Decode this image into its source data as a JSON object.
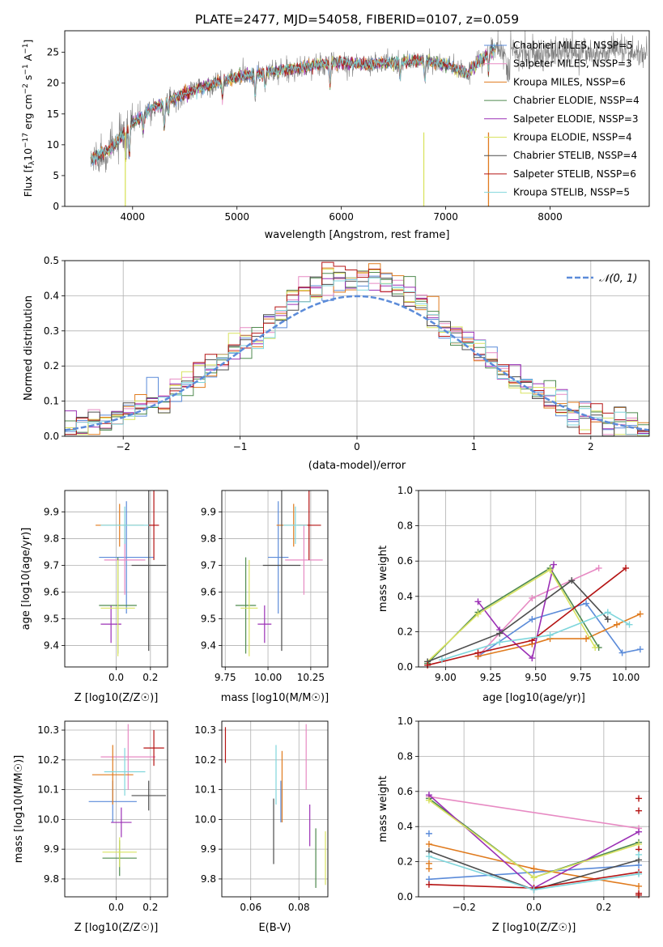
{
  "colors": {
    "chabrier_miles": "#5b8bd9",
    "salpeter_miles": "#e78ac3",
    "kroupa_miles": "#e07b1e",
    "chabrier_elodie": "#4f8a4f",
    "salpeter_elodie": "#9b30b5",
    "kroupa_elodie": "#d9e360",
    "chabrier_stelib": "#4d4d4d",
    "salpeter_stelib": "#b51414",
    "kroupa_stelib": "#7fd6dc",
    "gaussian": "#5b8bd9"
  },
  "chart_data": [
    {
      "id": "spectrum",
      "type": "line",
      "title": "PLATE=2477, MJD=54058, FIBERID=0107, z=0.059",
      "xlabel": "wavelength [Angstrom, rest frame]",
      "ylabel": "Flux [fλ10⁻¹⁷ erg cm⁻² s⁻¹ A⁻¹]",
      "xlim": [
        3350,
        8950
      ],
      "ylim": [
        0,
        28.5
      ],
      "xticks": [
        "4000",
        "5000",
        "6000",
        "7000",
        "8000"
      ],
      "yticks": [
        "0",
        "5",
        "10",
        "15",
        "20",
        "25"
      ],
      "legend_position": "right",
      "legend": [
        {
          "key": "chabrier_miles",
          "label": "Chabrier MILES, NSSP=5"
        },
        {
          "key": "salpeter_miles",
          "label": "Salpeter MILES, NSSP=3"
        },
        {
          "key": "kroupa_miles",
          "label": "Kroupa MILES, NSSP=6"
        },
        {
          "key": "chabrier_elodie",
          "label": "Chabrier ELODIE, NSSP=4"
        },
        {
          "key": "salpeter_elodie",
          "label": "Salpeter ELODIE, NSSP=3"
        },
        {
          "key": "kroupa_elodie",
          "label": "Kroupa ELODIE, NSSP=4"
        },
        {
          "key": "chabrier_stelib",
          "label": "Chabrier STELIB, NSSP=4"
        },
        {
          "key": "salpeter_stelib",
          "label": "Salpeter STELIB, NSSP=6"
        },
        {
          "key": "kroupa_stelib",
          "label": "Kroupa STELIB, NSSP=5"
        }
      ],
      "continuum": {
        "x": [
          3600,
          3800,
          4000,
          4200,
          4400,
          4600,
          4800,
          5000,
          5200,
          5400,
          5600,
          5800,
          6000,
          6200,
          6400,
          6600,
          6800,
          7000,
          7200,
          7400,
          7500
        ],
        "y": [
          7.5,
          9.5,
          13.5,
          16.0,
          17.5,
          19.0,
          20.0,
          21.0,
          21.5,
          22.0,
          22.5,
          23.0,
          23.5,
          23.0,
          23.2,
          23.5,
          23.6,
          23.0,
          21.5,
          24.8,
          26.0
        ],
        "observed_extends_to": 8930
      },
      "absorption_features": {
        "x": [
          3934,
          3969,
          4102,
          4304,
          4341,
          4861,
          5175,
          5270,
          5892,
          6563,
          6800,
          7410
        ],
        "depth": [
          5.0,
          4.5,
          2.5,
          4.0,
          2.0,
          2.5,
          3.5,
          2.0,
          3.5,
          2.5,
          3.0,
          3.0
        ]
      }
    },
    {
      "id": "residuals",
      "type": "histogram",
      "xlabel": "(data-model)/error",
      "ylabel": "Normed distribution",
      "xlim": [
        -2.5,
        2.5
      ],
      "ylim": [
        0,
        0.5
      ],
      "xticks": [
        "−2",
        "−1",
        "0",
        "1",
        "2"
      ],
      "yticks": [
        "0.0",
        "0.1",
        "0.2",
        "0.3",
        "0.4",
        "0.5"
      ],
      "grid": true,
      "legend_position": "upper right",
      "gaussian_label": "𝒩(0, 1)",
      "bin_width": 0.1,
      "gaussian": {
        "mean": 0,
        "sigma": 1
      }
    },
    {
      "id": "age_vs_z",
      "type": "errorbar",
      "xlabel": "Z [log10(Z/Z☉)]",
      "ylabel": "age  [log10(age/yr)]",
      "xlim": [
        -0.3,
        0.3
      ],
      "ylim": [
        9.32,
        9.98
      ],
      "xticks": [
        {
          "v": 0.0,
          "t": "0.0"
        },
        {
          "v": 0.2,
          "t": "0.2"
        }
      ],
      "yticks": [
        {
          "v": 9.4,
          "t": "9.4"
        },
        {
          "v": 9.5,
          "t": "9.5"
        },
        {
          "v": 9.6,
          "t": "9.6"
        },
        {
          "v": 9.7,
          "t": "9.7"
        },
        {
          "v": 9.8,
          "t": "9.8"
        },
        {
          "v": 9.9,
          "t": "9.9"
        }
      ],
      "grid": true,
      "points": [
        {
          "key": "chabrier_miles",
          "x": 0.06,
          "y": 9.73,
          "xerr": 0.16,
          "yerr": 0.21
        },
        {
          "key": "salpeter_miles",
          "x": 0.05,
          "y": 9.72,
          "xerr": 0.12,
          "yerr": 0.13
        },
        {
          "key": "kroupa_miles",
          "x": 0.02,
          "y": 9.85,
          "xerr": 0.14,
          "yerr": 0.08
        },
        {
          "key": "chabrier_elodie",
          "x": 0.01,
          "y": 9.55,
          "xerr": 0.11,
          "yerr": 0.18
        },
        {
          "key": "salpeter_elodie",
          "x": -0.03,
          "y": 9.48,
          "xerr": 0.06,
          "yerr": 0.07
        },
        {
          "key": "kroupa_elodie",
          "x": 0.01,
          "y": 9.54,
          "xerr": 0.1,
          "yerr": 0.18
        },
        {
          "key": "chabrier_stelib",
          "x": 0.19,
          "y": 9.7,
          "xerr": 0.1,
          "yerr": 0.32
        },
        {
          "key": "salpeter_stelib",
          "x": 0.22,
          "y": 9.85,
          "xerr": 0.03,
          "yerr": 0.13
        },
        {
          "key": "kroupa_stelib",
          "x": 0.05,
          "y": 9.85,
          "xerr": 0.14,
          "yerr": 0.07
        }
      ]
    },
    {
      "id": "age_vs_mass",
      "type": "errorbar",
      "xlabel": "mass [log10(M/M☉)]",
      "ylabel": "",
      "xlim": [
        9.73,
        10.35
      ],
      "ylim": [
        9.32,
        9.98
      ],
      "xticks": [
        {
          "v": 9.75,
          "t": "9.75"
        },
        {
          "v": 10.0,
          "t": "10.00"
        },
        {
          "v": 10.25,
          "t": "10.25"
        }
      ],
      "yticks": [
        {
          "v": 9.4,
          "t": "9.4"
        },
        {
          "v": 9.5,
          "t": "9.5"
        },
        {
          "v": 9.6,
          "t": "9.6"
        },
        {
          "v": 9.7,
          "t": "9.7"
        },
        {
          "v": 9.8,
          "t": "9.8"
        },
        {
          "v": 9.9,
          "t": "9.9"
        }
      ],
      "grid": true,
      "points": [
        {
          "key": "chabrier_miles",
          "x": 10.06,
          "y": 9.73,
          "xerr": 0.06,
          "yerr": 0.21
        },
        {
          "key": "salpeter_miles",
          "x": 10.21,
          "y": 9.72,
          "xerr": 0.11,
          "yerr": 0.13
        },
        {
          "key": "kroupa_miles",
          "x": 10.15,
          "y": 9.85,
          "xerr": 0.1,
          "yerr": 0.08
        },
        {
          "key": "chabrier_elodie",
          "x": 9.87,
          "y": 9.55,
          "xerr": 0.06,
          "yerr": 0.18
        },
        {
          "key": "salpeter_elodie",
          "x": 9.98,
          "y": 9.48,
          "xerr": 0.04,
          "yerr": 0.07
        },
        {
          "key": "kroupa_elodie",
          "x": 9.89,
          "y": 9.54,
          "xerr": 0.05,
          "yerr": 0.18
        },
        {
          "key": "chabrier_stelib",
          "x": 10.08,
          "y": 9.7,
          "xerr": 0.11,
          "yerr": 0.32
        },
        {
          "key": "salpeter_stelib",
          "x": 10.24,
          "y": 9.85,
          "xerr": 0.07,
          "yerr": 0.13
        },
        {
          "key": "kroupa_stelib",
          "x": 10.16,
          "y": 9.85,
          "xerr": 0.07,
          "yerr": 0.07
        }
      ]
    },
    {
      "id": "weight_vs_age",
      "type": "line",
      "xlabel": "age  [log10(age/yr)]",
      "ylabel": "mass weight",
      "xlim": [
        8.85,
        10.13
      ],
      "ylim": [
        0,
        1.0
      ],
      "xticks": [
        {
          "v": 9.0,
          "t": "9.00"
        },
        {
          "v": 9.25,
          "t": "9.25"
        },
        {
          "v": 9.5,
          "t": "9.50"
        },
        {
          "v": 9.75,
          "t": "9.75"
        },
        {
          "v": 10.0,
          "t": "10.00"
        }
      ],
      "yticks": [
        {
          "v": 0,
          "t": "0.0"
        },
        {
          "v": 0.2,
          "t": "0.2"
        },
        {
          "v": 0.4,
          "t": "0.4"
        },
        {
          "v": 0.6,
          "t": "0.6"
        },
        {
          "v": 0.8,
          "t": "0.8"
        },
        {
          "v": 1.0,
          "t": "1.0"
        }
      ],
      "grid": true,
      "series": [
        {
          "key": "chabrier_miles",
          "x": [
            9.18,
            9.48,
            9.78,
            9.98,
            10.08
          ],
          "y": [
            0.06,
            0.27,
            0.36,
            0.08,
            0.1
          ]
        },
        {
          "key": "salpeter_miles",
          "x": [
            9.18,
            9.48,
            9.85
          ],
          "y": [
            0.06,
            0.39,
            0.56
          ]
        },
        {
          "key": "kroupa_miles",
          "x": [
            9.18,
            9.48,
            9.58,
            9.78,
            9.95,
            10.08
          ],
          "y": [
            0.06,
            0.13,
            0.16,
            0.16,
            0.24,
            0.3
          ]
        },
        {
          "key": "chabrier_elodie",
          "x": [
            8.9,
            9.18,
            9.58,
            9.85
          ],
          "y": [
            0.02,
            0.31,
            0.56,
            0.11
          ]
        },
        {
          "key": "salpeter_elodie",
          "x": [
            9.18,
            9.3,
            9.48,
            9.6
          ],
          "y": [
            0.37,
            0.21,
            0.05,
            0.58
          ]
        },
        {
          "key": "kroupa_elodie",
          "x": [
            8.9,
            9.18,
            9.58,
            9.83
          ],
          "y": [
            0.03,
            0.3,
            0.55,
            0.11
          ]
        },
        {
          "key": "chabrier_stelib",
          "x": [
            8.9,
            9.3,
            9.7,
            9.9
          ],
          "y": [
            0.03,
            0.19,
            0.49,
            0.27
          ]
        },
        {
          "key": "salpeter_stelib",
          "x": [
            8.9,
            9.18,
            9.48,
            10.0
          ],
          "y": [
            0.01,
            0.08,
            0.15,
            0.56
          ]
        },
        {
          "key": "kroupa_stelib",
          "x": [
            8.98,
            9.3,
            9.58,
            9.9,
            10.02
          ],
          "y": [
            0.04,
            0.14,
            0.18,
            0.31,
            0.24
          ]
        }
      ]
    },
    {
      "id": "mass_vs_z",
      "type": "errorbar",
      "xlabel": "Z [log10(Z/Z☉)]",
      "ylabel": "mass [log10(M/M☉)]",
      "xlim": [
        -0.3,
        0.3
      ],
      "ylim": [
        9.74,
        10.33
      ],
      "xticks": [
        {
          "v": 0.0,
          "t": "0.0"
        },
        {
          "v": 0.2,
          "t": "0.2"
        }
      ],
      "yticks": [
        {
          "v": 9.8,
          "t": "9.8"
        },
        {
          "v": 9.9,
          "t": "9.9"
        },
        {
          "v": 10.0,
          "t": "10.0"
        },
        {
          "v": 10.1,
          "t": "10.1"
        },
        {
          "v": 10.2,
          "t": "10.2"
        },
        {
          "v": 10.3,
          "t": "10.3"
        }
      ],
      "grid": true,
      "points": [
        {
          "key": "chabrier_miles",
          "x": -0.02,
          "y": 10.06,
          "xerr": 0.14,
          "yerr": 0.07
        },
        {
          "key": "salpeter_miles",
          "x": 0.07,
          "y": 10.21,
          "xerr": 0.16,
          "yerr": 0.11
        },
        {
          "key": "kroupa_miles",
          "x": -0.02,
          "y": 10.15,
          "xerr": 0.12,
          "yerr": 0.1
        },
        {
          "key": "chabrier_elodie",
          "x": 0.02,
          "y": 9.87,
          "xerr": 0.1,
          "yerr": 0.06
        },
        {
          "key": "salpeter_elodie",
          "x": 0.03,
          "y": 9.99,
          "xerr": 0.06,
          "yerr": 0.05
        },
        {
          "key": "kroupa_elodie",
          "x": 0.02,
          "y": 9.89,
          "xerr": 0.1,
          "yerr": 0.05
        },
        {
          "key": "chabrier_stelib",
          "x": 0.19,
          "y": 10.08,
          "xerr": 0.1,
          "yerr": 0.05
        },
        {
          "key": "salpeter_stelib",
          "x": 0.22,
          "y": 10.24,
          "xerr": 0.06,
          "yerr": 0.06
        },
        {
          "key": "kroupa_stelib",
          "x": 0.05,
          "y": 10.16,
          "xerr": 0.12,
          "yerr": 0.08
        }
      ]
    },
    {
      "id": "mass_vs_ebv",
      "type": "errorbar",
      "xlabel": "E(B-V)",
      "ylabel": "",
      "xlim": [
        0.048,
        0.092
      ],
      "ylim": [
        9.74,
        10.33
      ],
      "xticks": [
        {
          "v": 0.06,
          "t": "0.06"
        },
        {
          "v": 0.08,
          "t": "0.08"
        }
      ],
      "yticks": [
        {
          "v": 9.8,
          "t": "9.8"
        },
        {
          "v": 9.9,
          "t": "9.9"
        },
        {
          "v": 10.0,
          "t": "10.0"
        },
        {
          "v": 10.1,
          "t": "10.1"
        },
        {
          "v": 10.2,
          "t": "10.2"
        },
        {
          "v": 10.3,
          "t": "10.3"
        }
      ],
      "grid": true,
      "points": [
        {
          "key": "chabrier_miles",
          "x": 0.0725,
          "y": 10.06,
          "xerr": 0,
          "yerr": 0.07
        },
        {
          "key": "salpeter_miles",
          "x": 0.083,
          "y": 10.21,
          "xerr": 0,
          "yerr": 0.11
        },
        {
          "key": "kroupa_miles",
          "x": 0.073,
          "y": 10.11,
          "xerr": 0,
          "yerr": 0.12
        },
        {
          "key": "chabrier_elodie",
          "x": 0.087,
          "y": 9.87,
          "xerr": 0,
          "yerr": 0.1
        },
        {
          "key": "salpeter_elodie",
          "x": 0.0845,
          "y": 9.98,
          "xerr": 0,
          "yerr": 0.07
        },
        {
          "key": "kroupa_elodie",
          "x": 0.091,
          "y": 9.87,
          "xerr": 0,
          "yerr": 0.09
        },
        {
          "key": "chabrier_stelib",
          "x": 0.0695,
          "y": 9.96,
          "xerr": 0,
          "yerr": 0.11
        },
        {
          "key": "salpeter_stelib",
          "x": 0.0495,
          "y": 10.25,
          "xerr": 0,
          "yerr": 0.06
        },
        {
          "key": "kroupa_stelib",
          "x": 0.0705,
          "y": 10.15,
          "xerr": 0,
          "yerr": 0.1
        }
      ]
    },
    {
      "id": "weight_vs_z",
      "type": "line",
      "xlabel": "Z [log10(Z/Z☉)]",
      "ylabel": "mass weight",
      "xlim": [
        -0.33,
        0.33
      ],
      "ylim": [
        0,
        1.0
      ],
      "xticks": [
        {
          "v": -0.2,
          "t": "−0.2"
        },
        {
          "v": 0.0,
          "t": "0.0"
        },
        {
          "v": 0.2,
          "t": "0.2"
        }
      ],
      "yticks": [
        {
          "v": 0,
          "t": "0.0"
        },
        {
          "v": 0.2,
          "t": "0.2"
        },
        {
          "v": 0.4,
          "t": "0.4"
        },
        {
          "v": 0.6,
          "t": "0.6"
        },
        {
          "v": 0.8,
          "t": "0.8"
        },
        {
          "v": 1.0,
          "t": "1.0"
        }
      ],
      "grid": true,
      "series": [
        {
          "key": "chabrier_miles",
          "x": [
            -0.3,
            0.0,
            0.3
          ],
          "y": [
            0.1,
            0.14,
            0.18
          ]
        },
        {
          "key": "salpeter_miles",
          "x": [
            -0.3,
            0.3
          ],
          "y": [
            0.57,
            0.39
          ]
        },
        {
          "key": "kroupa_miles",
          "x": [
            -0.3,
            0.0,
            0.3
          ],
          "y": [
            0.3,
            0.16,
            0.06
          ]
        },
        {
          "key": "chabrier_elodie",
          "x": [
            -0.3,
            0.0,
            0.3
          ],
          "y": [
            0.56,
            0.11,
            0.31
          ]
        },
        {
          "key": "salpeter_elodie",
          "x": [
            -0.3,
            0.0,
            0.3
          ],
          "y": [
            0.58,
            0.05,
            0.37
          ]
        },
        {
          "key": "kroupa_elodie",
          "x": [
            -0.3,
            0.0,
            0.3
          ],
          "y": [
            0.55,
            0.11,
            0.3
          ]
        },
        {
          "key": "chabrier_stelib",
          "x": [
            -0.3,
            0.0,
            0.3
          ],
          "y": [
            0.26,
            0.04,
            0.21
          ]
        },
        {
          "key": "salpeter_stelib",
          "x": [
            -0.3,
            0.0,
            0.3
          ],
          "y": [
            0.07,
            0.05,
            0.14
          ]
        },
        {
          "key": "kroupa_stelib",
          "x": [
            -0.3,
            0.0,
            0.3
          ],
          "y": [
            0.23,
            0.04,
            0.13
          ]
        }
      ],
      "endpoint_markers": [
        {
          "key": "chabrier_miles",
          "x": -0.3,
          "y": 0.36
        },
        {
          "key": "kroupa_miles",
          "x": -0.3,
          "y": 0.19
        },
        {
          "key": "kroupa_miles",
          "x": -0.3,
          "y": 0.16
        },
        {
          "key": "salpeter_stelib",
          "x": 0.3,
          "y": 0.56
        },
        {
          "key": "salpeter_stelib",
          "x": 0.3,
          "y": 0.49
        },
        {
          "key": "salpeter_stelib",
          "x": 0.3,
          "y": 0.27
        },
        {
          "key": "salpeter_stelib",
          "x": 0.3,
          "y": 0.02
        },
        {
          "key": "salpeter_stelib",
          "x": 0.3,
          "y": 0.01
        },
        {
          "key": "kroupa_stelib",
          "x": 0.3,
          "y": 0.24
        }
      ]
    }
  ]
}
